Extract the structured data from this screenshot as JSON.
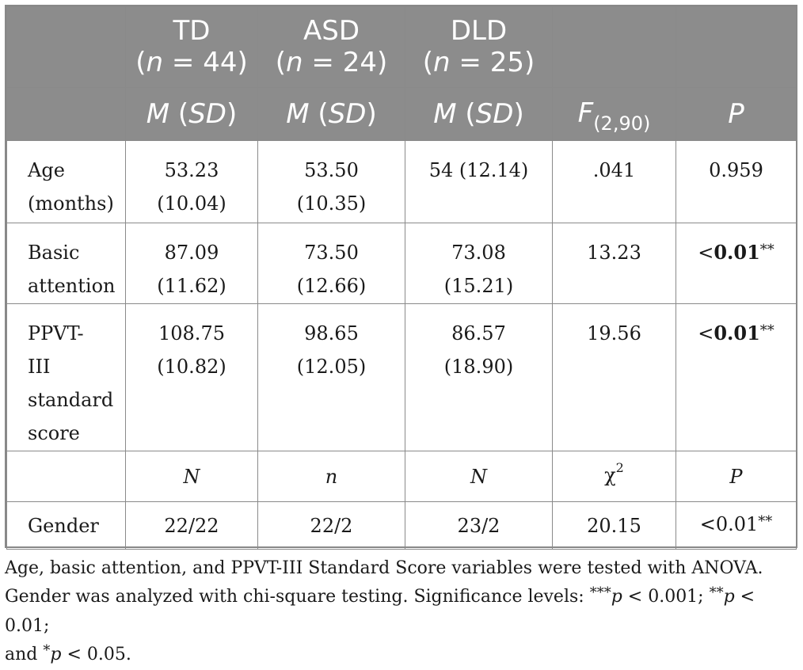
{
  "table": {
    "header": {
      "groups": [
        {
          "name": "TD",
          "n_prefix": "(",
          "n_label": "n",
          "n_value": " = 44)"
        },
        {
          "name": "ASD",
          "n_prefix": "(",
          "n_label": "n",
          "n_value": " = 24)"
        },
        {
          "name": "DLD",
          "n_prefix": "(",
          "n_label": "n",
          "n_value": " = 25)"
        }
      ],
      "stat_row": {
        "m": "M",
        "sd": "SD",
        "f_label": "F",
        "f_sub": "(2,90)",
        "p_label": "P"
      }
    },
    "rows": [
      {
        "label_1": "Age",
        "label_2": "(months)",
        "td_1": "53.23",
        "td_2": "(10.04)",
        "asd_1": "53.50",
        "asd_2": "(10.35)",
        "dld_1": "54 (12.14)",
        "dld_2": "",
        "f": ".041",
        "p": "0.959",
        "p_bold": false
      },
      {
        "label_1": "Basic",
        "label_2": "attention",
        "td_1": "87.09",
        "td_2": "(11.62)",
        "asd_1": "73.50",
        "asd_2": "(12.66)",
        "dld_1": "73.08",
        "dld_2": "(15.21)",
        "f": "13.23",
        "p_lt": "<",
        "p_val": "0.01",
        "p_stars": "**"
      },
      {
        "label_1": "PPVT-",
        "label_2": "III",
        "label_3": "standard",
        "label_4": "score",
        "td_1": "108.75",
        "td_2": "(10.82)",
        "asd_1": "98.65",
        "asd_2": "(12.05)",
        "dld_1": "86.57",
        "dld_2": "(18.90)",
        "f": "19.56",
        "p_lt": "<",
        "p_val": "0.01",
        "p_stars": "**"
      }
    ],
    "subheader": {
      "td": "N",
      "asd": "n",
      "dld": "N",
      "chi": "χ",
      "chi_sup": "2",
      "p": "P"
    },
    "gender": {
      "label": "Gender",
      "td": "22/22",
      "asd": "22/2",
      "dld": "23/2",
      "chi": "20.15",
      "p": "<0.01",
      "p_stars": "**"
    }
  },
  "note": {
    "line1": "Age, basic attention, and PPVT-III Standard Score variables were tested with ANOVA.",
    "line2a": "Gender was analyzed with chi-square testing. Significance levels: ",
    "s3": "***",
    "p1": "p",
    "t1": " < 0.001; ",
    "s2": "**",
    "p2": "p",
    "t2": " < 0.01;",
    "line3a": "and ",
    "s1": "*",
    "p3": "p",
    "t3": " < 0.05."
  }
}
